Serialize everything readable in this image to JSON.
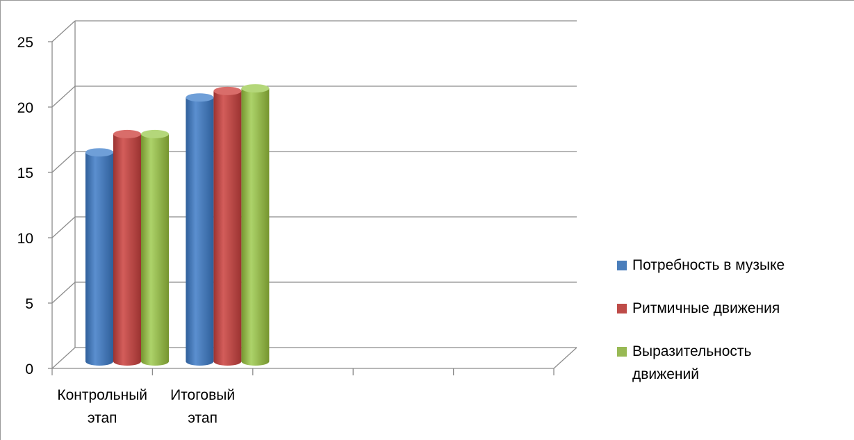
{
  "chart_data": {
    "type": "bar",
    "categories": [
      "Контрольный этап",
      "Итоговый этап",
      "",
      "",
      ""
    ],
    "category_label_lines": [
      [
        "Контрольный",
        "этап"
      ],
      [
        "Итоговый",
        "этап"
      ],
      [
        ""
      ],
      [
        ""
      ],
      [
        ""
      ]
    ],
    "series": [
      {
        "name": "Потребность в музыке",
        "values": [
          16,
          20.2,
          null,
          null,
          null
        ],
        "color": "#4a7ebb"
      },
      {
        "name": "Ритмичные движения",
        "values": [
          17.4,
          20.7,
          null,
          null,
          null
        ],
        "color": "#be4b48"
      },
      {
        "name": "Выразительность движений",
        "values": [
          17.4,
          20.9,
          null,
          null,
          null
        ],
        "color": "#98b954"
      }
    ],
    "legend_label_lines": [
      [
        "Потребность в музыке"
      ],
      [
        "Ритмичные движения"
      ],
      [
        "Выразительность",
        "движений"
      ]
    ],
    "ylim": [
      0,
      25
    ],
    "y_ticks": [
      "0",
      "5",
      "10",
      "15",
      "20",
      "25"
    ],
    "title": "",
    "xlabel": "",
    "ylabel": "",
    "grid": true,
    "legend_position": "right",
    "style": "3d-cylinder"
  }
}
